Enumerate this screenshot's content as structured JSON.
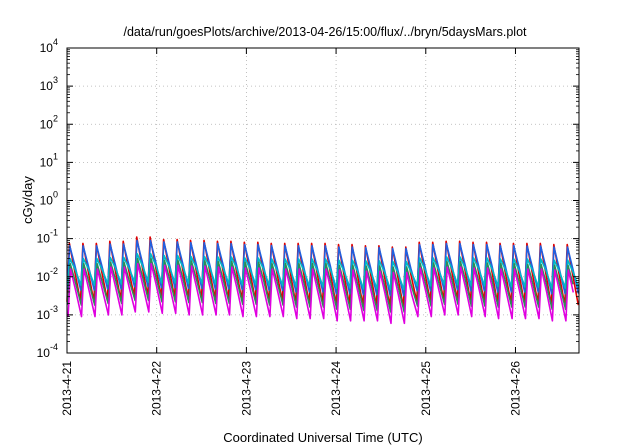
{
  "chart_data": {
    "type": "line",
    "title": "/data/run/goesPlots/archive/2013-04-26/15:00/flux/../bryn/5daysMars.plot",
    "xlabel": "Coordinated Universal Time (UTC)",
    "ylabel": "cGy/day",
    "yscale": "log",
    "ylim": [
      0.0001,
      10000
    ],
    "xlim": [
      "2013-04-21T00:00",
      "2013-04-26T17:00"
    ],
    "x_ticks": [
      "2013-4-21",
      "2013-4-22",
      "2013-4-23",
      "2013-4-24",
      "2013-4-25",
      "2013-4-26"
    ],
    "y_ticks": [
      {
        "base": "10",
        "exp": "-4"
      },
      {
        "base": "10",
        "exp": "-3"
      },
      {
        "base": "10",
        "exp": "-2"
      },
      {
        "base": "10",
        "exp": "-1"
      },
      {
        "base": "10",
        "exp": "0"
      },
      {
        "base": "10",
        "exp": "1"
      },
      {
        "base": "10",
        "exp": "2"
      },
      {
        "base": "10",
        "exp": "3"
      },
      {
        "base": "10",
        "exp": "4"
      }
    ],
    "grid": true,
    "cycle_hours": 3.6,
    "series": [
      {
        "color": "#e00000",
        "peak": [
          0.075,
          0.085,
          0.11,
          0.095,
          0.09,
          0.085,
          0.08,
          0.075,
          0.075,
          0.07,
          0.065,
          0.06,
          0.08,
          0.085,
          0.08,
          0.075,
          0.075,
          0.07
        ],
        "trough": [
          0.0022,
          0.0024,
          0.003,
          0.0028,
          0.0026,
          0.0025,
          0.0024,
          0.0023,
          0.002,
          0.0018,
          0.0017,
          0.0016,
          0.0022,
          0.0024,
          0.0022,
          0.002,
          0.002,
          0.0018
        ]
      },
      {
        "color": "#2060e0",
        "peak": [
          0.065,
          0.072,
          0.09,
          0.082,
          0.078,
          0.074,
          0.07,
          0.066,
          0.065,
          0.06,
          0.058,
          0.055,
          0.07,
          0.074,
          0.07,
          0.066,
          0.064,
          0.06
        ],
        "trough": [
          0.0045,
          0.0048,
          0.0055,
          0.0052,
          0.005,
          0.0048,
          0.0046,
          0.0044,
          0.004,
          0.0036,
          0.0034,
          0.0032,
          0.0043,
          0.0046,
          0.0043,
          0.004,
          0.004,
          0.0036
        ]
      },
      {
        "color": "#00b8c8",
        "peak": [
          0.03,
          0.032,
          0.04,
          0.036,
          0.034,
          0.033,
          0.031,
          0.029,
          0.029,
          0.027,
          0.026,
          0.025,
          0.031,
          0.033,
          0.031,
          0.029,
          0.029,
          0.027
        ],
        "trough": [
          0.006,
          0.0064,
          0.0072,
          0.0068,
          0.0066,
          0.0064,
          0.0061,
          0.0058,
          0.0054,
          0.005,
          0.0048,
          0.0046,
          0.0058,
          0.0061,
          0.0058,
          0.0055,
          0.0054,
          0.005
        ]
      },
      {
        "color": "#2e8b57",
        "peak": [
          0.022,
          0.024,
          0.03,
          0.027,
          0.026,
          0.025,
          0.024,
          0.022,
          0.022,
          0.02,
          0.019,
          0.018,
          0.023,
          0.025,
          0.023,
          0.022,
          0.021,
          0.02
        ],
        "trough": [
          0.0018,
          0.002,
          0.0024,
          0.0022,
          0.0021,
          0.002,
          0.0019,
          0.0018,
          0.0016,
          0.0014,
          0.0013,
          0.0012,
          0.0017,
          0.0019,
          0.0017,
          0.0016,
          0.0016,
          0.0014
        ]
      },
      {
        "color": "#e000e0",
        "peak": [
          0.016,
          0.018,
          0.022,
          0.02,
          0.019,
          0.018,
          0.017,
          0.016,
          0.016,
          0.015,
          0.014,
          0.013,
          0.017,
          0.018,
          0.017,
          0.016,
          0.016,
          0.015
        ],
        "trough": [
          0.0009,
          0.001,
          0.0012,
          0.0011,
          0.001,
          0.001,
          0.0009,
          0.0009,
          0.0008,
          0.0007,
          0.0007,
          0.0006,
          0.0009,
          0.001,
          0.0009,
          0.0008,
          0.0008,
          0.0007
        ]
      }
    ]
  }
}
